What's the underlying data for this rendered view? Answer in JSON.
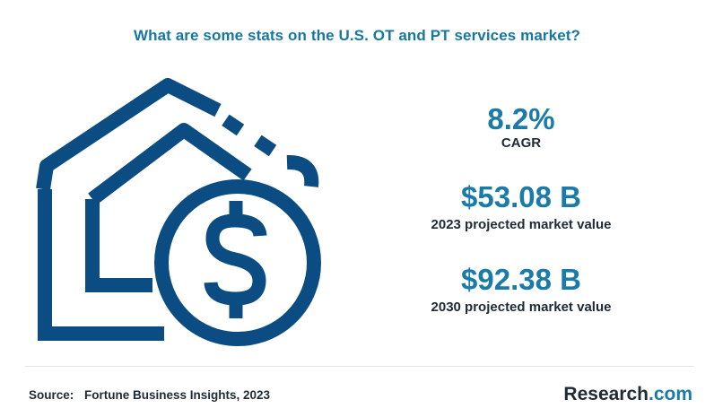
{
  "title": "What are some stats on the U.S. OT and PT  services market?",
  "icon": "house-dollar-icon",
  "colors": {
    "accent": "#1a7aa8",
    "icon_navy": "#0b4d82",
    "text_dark": "#1e2a35"
  },
  "stats": [
    {
      "value": "8.2%",
      "label": "CAGR"
    },
    {
      "value": "$53.08 B",
      "label": "2023 projected market value"
    },
    {
      "value": "$92.38 B",
      "label": "2030 projected market value"
    }
  ],
  "footer": {
    "source_label": "Source:",
    "source_text": "Fortune Business Insights, 2023"
  },
  "brand": {
    "name": "Research",
    "suffix": ".com"
  }
}
